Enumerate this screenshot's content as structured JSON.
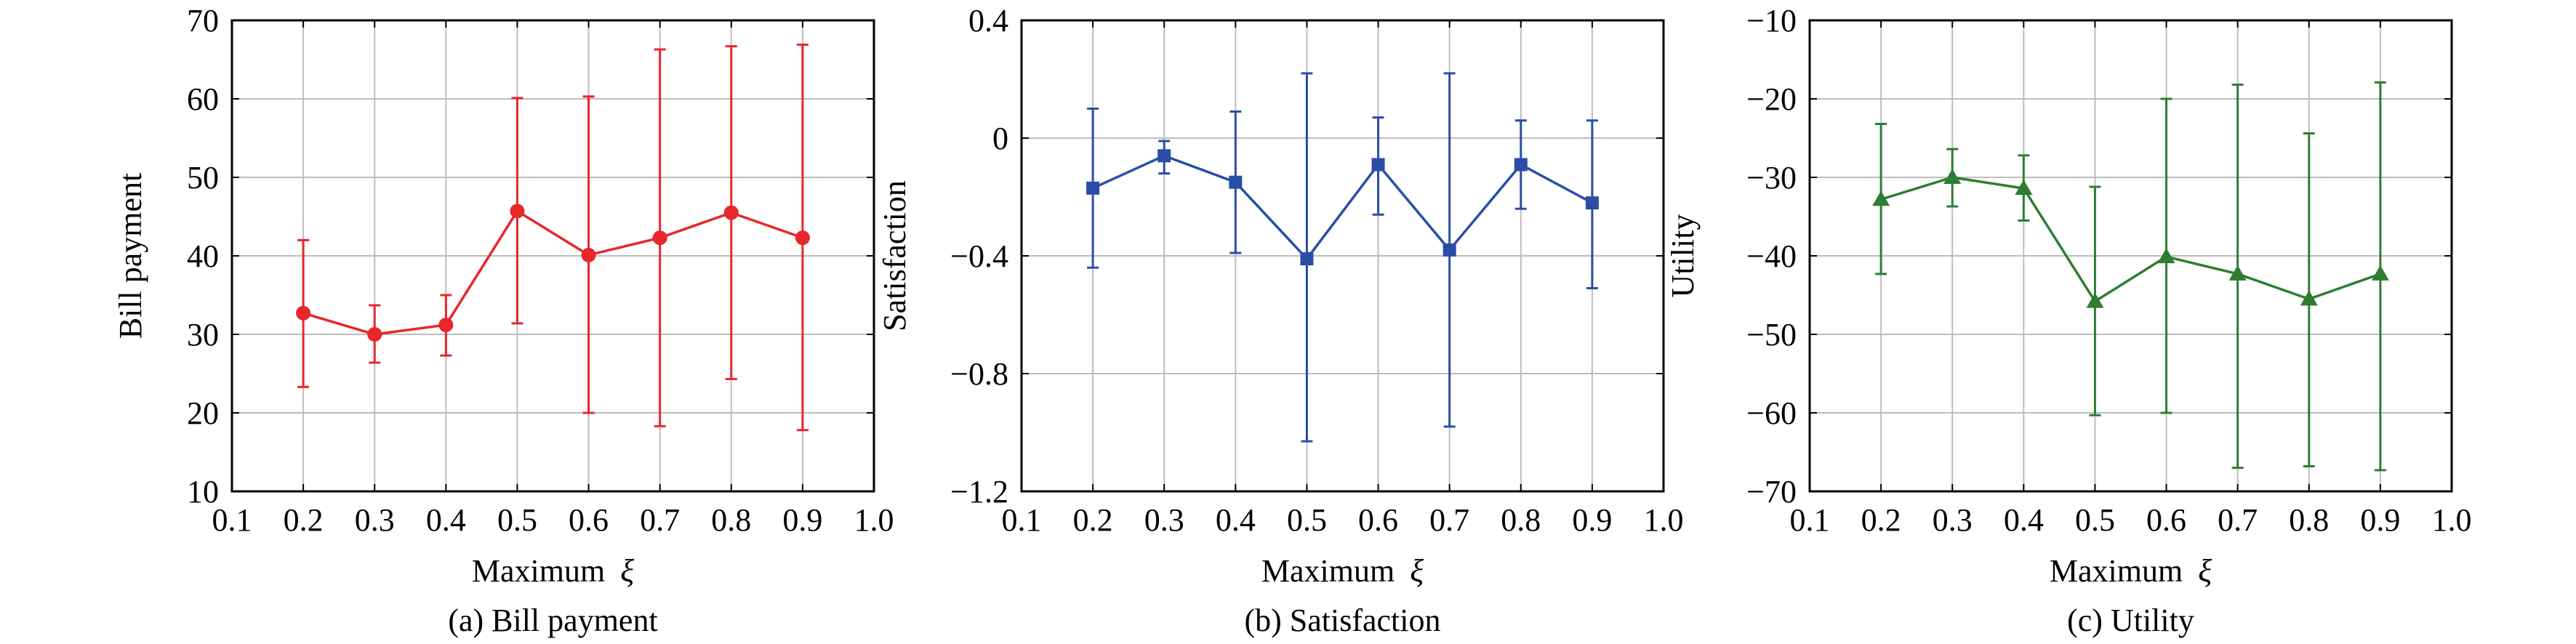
{
  "chart_data": [
    {
      "type": "line",
      "caption": "(a) Bill payment",
      "xlabel_text": "Maximum ",
      "xlabel_symbol": "ξ",
      "ylabel": "Bill payment",
      "xlim": [
        0.1,
        1.0
      ],
      "ylim": [
        10,
        70
      ],
      "xticks": [
        0.1,
        0.2,
        0.3,
        0.4,
        0.5,
        0.6,
        0.7,
        0.8,
        0.9,
        1.0
      ],
      "xtick_labels": [
        "0.1",
        "0.2",
        "0.3",
        "0.4",
        "0.5",
        "0.6",
        "0.7",
        "0.8",
        "0.9",
        "1.0"
      ],
      "yticks": [
        10,
        20,
        30,
        40,
        50,
        60,
        70
      ],
      "ytick_labels": [
        "10",
        "20",
        "30",
        "40",
        "50",
        "60",
        "70"
      ],
      "grid": true,
      "color": "#e8262b",
      "marker": "circle",
      "x": [
        0.2,
        0.3,
        0.4,
        0.5,
        0.6,
        0.7,
        0.8,
        0.9
      ],
      "y": [
        32.7,
        30.0,
        31.2,
        45.7,
        40.1,
        42.3,
        45.5,
        42.3
      ],
      "err_low": [
        23.3,
        26.4,
        27.3,
        31.4,
        20.0,
        18.3,
        24.3,
        17.8
      ],
      "err_high": [
        42.0,
        33.7,
        35.0,
        60.1,
        60.3,
        66.3,
        66.7,
        66.9
      ]
    },
    {
      "type": "line",
      "caption": "(b) Satisfaction",
      "xlabel_text": "Maximum ",
      "xlabel_symbol": "ξ",
      "ylabel": "Satisfaction",
      "xlim": [
        0.1,
        1.0
      ],
      "ylim": [
        -1.2,
        0.4
      ],
      "xticks": [
        0.1,
        0.2,
        0.3,
        0.4,
        0.5,
        0.6,
        0.7,
        0.8,
        0.9,
        1.0
      ],
      "xtick_labels": [
        "0.1",
        "0.2",
        "0.3",
        "0.4",
        "0.5",
        "0.6",
        "0.7",
        "0.8",
        "0.9",
        "1.0"
      ],
      "yticks": [
        -1.2,
        -0.8,
        -0.4,
        0,
        0.4
      ],
      "ytick_labels": [
        "−1.2",
        "−0.8",
        "−0.4",
        "0",
        "0.4"
      ],
      "grid": true,
      "color": "#2a4ea6",
      "marker": "square",
      "x": [
        0.2,
        0.3,
        0.4,
        0.5,
        0.6,
        0.7,
        0.8,
        0.9
      ],
      "y": [
        -0.17,
        -0.06,
        -0.15,
        -0.41,
        -0.09,
        -0.38,
        -0.09,
        -0.22
      ],
      "err_low": [
        -0.44,
        -0.12,
        -0.39,
        -1.03,
        -0.26,
        -0.98,
        -0.24,
        -0.51
      ],
      "err_high": [
        0.1,
        -0.01,
        0.09,
        0.22,
        0.07,
        0.22,
        0.06,
        0.06
      ]
    },
    {
      "type": "line",
      "caption": "(c) Utility",
      "xlabel_text": "Maximum ",
      "xlabel_symbol": "ξ",
      "ylabel": "Utility",
      "xlim": [
        0.1,
        1.0
      ],
      "ylim": [
        -70,
        -10
      ],
      "xticks": [
        0.1,
        0.2,
        0.3,
        0.4,
        0.5,
        0.6,
        0.7,
        0.8,
        0.9,
        1.0
      ],
      "xtick_labels": [
        "0.1",
        "0.2",
        "0.3",
        "0.4",
        "0.5",
        "0.6",
        "0.7",
        "0.8",
        "0.9",
        "1.0"
      ],
      "yticks": [
        -70,
        -60,
        -50,
        -40,
        -30,
        -20,
        -10
      ],
      "ytick_labels": [
        "−70",
        "−60",
        "−50",
        "−40",
        "−30",
        "−20",
        "−10"
      ],
      "grid": true,
      "color": "#2e7d32",
      "marker": "triangle",
      "x": [
        0.2,
        0.3,
        0.4,
        0.5,
        0.6,
        0.7,
        0.8,
        0.9
      ],
      "y": [
        -32.8,
        -30.0,
        -31.4,
        -45.8,
        -40.1,
        -42.3,
        -45.5,
        -42.3
      ],
      "err_low": [
        -42.3,
        -33.7,
        -35.5,
        -60.3,
        -60.0,
        -67.0,
        -66.8,
        -67.3
      ],
      "err_high": [
        -23.2,
        -26.4,
        -27.2,
        -31.2,
        -20.0,
        -18.2,
        -24.4,
        -17.9
      ]
    }
  ]
}
